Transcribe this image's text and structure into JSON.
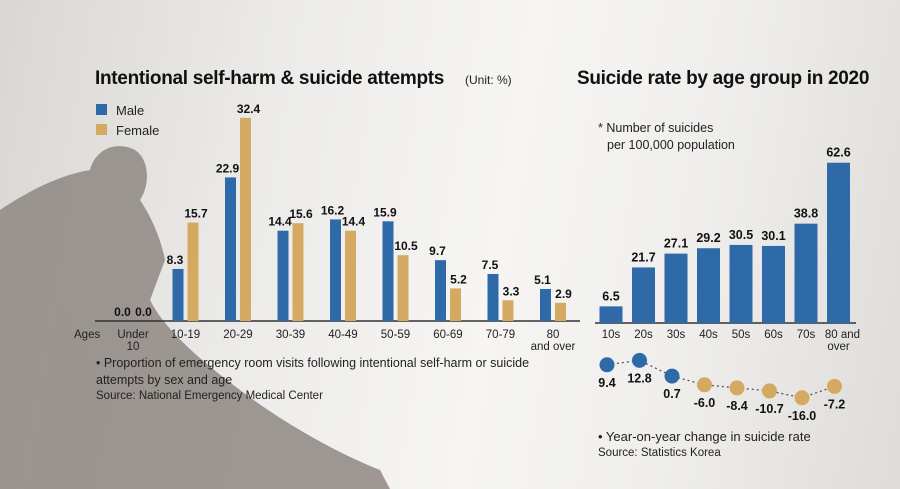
{
  "left": {
    "title": "Intentional self-harm & suicide attempts",
    "unit": "(Unit: %)",
    "note": "• Proportion of emergency room visits following intentional self-harm or suicide attempts by sex and age",
    "source": "Source: National Emergency Medical Center"
  },
  "right": {
    "title": "Suicide rate by age group in 2020",
    "note_line1": "* Number of suicides",
    "note_line2": "per 100,000 population",
    "change_note": "• Year-on-year change in suicide rate",
    "source": "Source: Statistics Korea"
  },
  "chart_data": [
    {
      "type": "bar",
      "title": "Intentional self-harm & suicide attempts",
      "unit": "(Unit: %)",
      "xlabel": "Ages",
      "categories": [
        "Under 10",
        "10-19",
        "20-29",
        "30-39",
        "40-49",
        "50-59",
        "60-69",
        "70-79",
        "80 and over"
      ],
      "series": [
        {
          "name": "Male",
          "color": "#2e6aa8",
          "values": [
            0.0,
            8.3,
            22.9,
            14.4,
            16.2,
            15.9,
            9.7,
            7.5,
            5.1
          ]
        },
        {
          "name": "Female",
          "color": "#d4aa63",
          "values": [
            0.0,
            15.7,
            32.4,
            15.6,
            14.4,
            10.5,
            5.2,
            3.3,
            2.9
          ]
        }
      ],
      "legend": "top-left",
      "grid": false
    },
    {
      "type": "bar",
      "title": "Suicide rate by age group in 2020",
      "categories": [
        "10s",
        "20s",
        "30s",
        "40s",
        "50s",
        "60s",
        "70s",
        "80 and over"
      ],
      "values": [
        6.5,
        21.7,
        27.1,
        29.2,
        30.5,
        30.1,
        38.8,
        62.6
      ],
      "color": "#2e6aa8",
      "grid": false
    },
    {
      "type": "line",
      "title": "Year-on-year change in suicide rate",
      "categories": [
        "10s",
        "20s",
        "30s",
        "40s",
        "50s",
        "60s",
        "70s",
        "80 and over"
      ],
      "values": [
        9.4,
        12.8,
        0.7,
        -6.0,
        -8.4,
        -10.7,
        -16.0,
        -7.2
      ],
      "positive_color": "#2e6aa8",
      "negative_color": "#d4aa63"
    }
  ]
}
